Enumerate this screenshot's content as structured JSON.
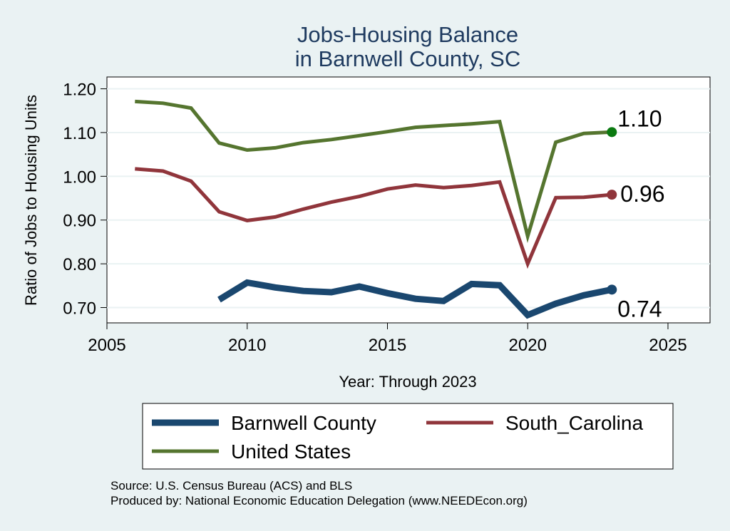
{
  "chart_data": {
    "type": "line",
    "title": [
      "Jobs-Housing Balance",
      "in Barnwell County, SC"
    ],
    "xlabel": "Year: Through 2023",
    "ylabel": "Ratio of Jobs to Housing Units",
    "xlim": [
      2005,
      2026.5
    ],
    "ylim": [
      0.665,
      1.227
    ],
    "xticks": [
      2005,
      2010,
      2015,
      2020,
      2025
    ],
    "yticks": [
      0.7,
      0.8,
      0.9,
      1.0,
      1.1,
      1.2
    ],
    "ytick_labels": [
      "0.70",
      "0.80",
      "0.90",
      "1.00",
      "1.10",
      "1.20"
    ],
    "grid": true,
    "series": [
      {
        "name": "Barnwell County",
        "color": "#1a476f",
        "x": [
          2009,
          2010,
          2011,
          2012,
          2013,
          2014,
          2015,
          2016,
          2017,
          2018,
          2019,
          2020,
          2021,
          2022,
          2023
        ],
        "values": [
          0.718,
          0.757,
          0.746,
          0.738,
          0.735,
          0.748,
          0.733,
          0.72,
          0.715,
          0.754,
          0.751,
          0.683,
          0.709,
          0.728,
          0.741
        ],
        "end_label": "0.74"
      },
      {
        "name": "South_Carolina",
        "color": "#90353b",
        "x": [
          2006,
          2007,
          2008,
          2009,
          2010,
          2011,
          2012,
          2013,
          2014,
          2015,
          2016,
          2017,
          2018,
          2019,
          2020,
          2021,
          2022,
          2023
        ],
        "values": [
          1.017,
          1.012,
          0.989,
          0.919,
          0.899,
          0.907,
          0.925,
          0.941,
          0.954,
          0.971,
          0.98,
          0.974,
          0.979,
          0.987,
          0.8,
          0.951,
          0.952,
          0.958
        ],
        "end_label": "0.96"
      },
      {
        "name": "United States",
        "color": "#55752f",
        "x": [
          2006,
          2007,
          2008,
          2009,
          2010,
          2011,
          2012,
          2013,
          2014,
          2015,
          2016,
          2017,
          2018,
          2019,
          2020,
          2021,
          2022,
          2023
        ],
        "values": [
          1.171,
          1.167,
          1.156,
          1.076,
          1.06,
          1.065,
          1.077,
          1.084,
          1.093,
          1.102,
          1.112,
          1.116,
          1.12,
          1.125,
          0.863,
          1.078,
          1.098,
          1.101
        ],
        "end_label": "1.10",
        "end_marker_color": "#0b7a11"
      }
    ]
  },
  "legend": {
    "items": [
      {
        "label": "Barnwell County"
      },
      {
        "label": "South_Carolina"
      },
      {
        "label": "United States"
      }
    ]
  },
  "source": {
    "line1": "Source: U.S. Census Bureau (ACS) and BLS",
    "line2": "Produced by: National Economic Education Delegation (www.NEEDEcon.org)"
  }
}
